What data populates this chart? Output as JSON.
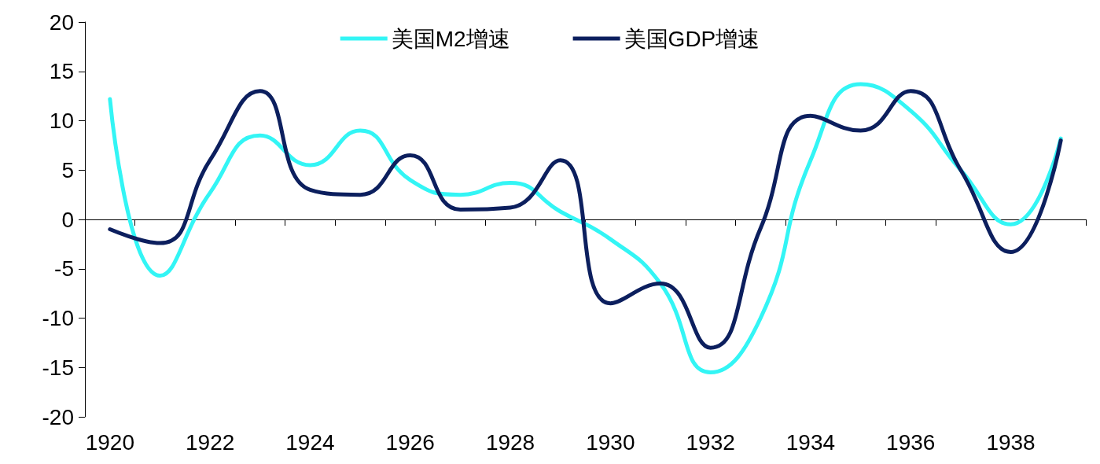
{
  "chart_data": {
    "type": "line",
    "categories": [
      "1920",
      null,
      "1922",
      null,
      "1924",
      null,
      "1926",
      null,
      "1928",
      null,
      "1930",
      null,
      "1932",
      null,
      "1934",
      null,
      "1936",
      null,
      "1938",
      null
    ],
    "series": [
      {
        "name": "美国M2增速",
        "color": "#33f5f5",
        "values": [
          12.2,
          -5.7,
          2.7,
          8.5,
          5.5,
          9,
          4,
          2.5,
          3.7,
          0.8,
          -2,
          -6.5,
          -15.5,
          -10,
          6,
          13.7,
          11,
          5,
          -0.5,
          8.2
        ]
      },
      {
        "name": "美国GDP增速",
        "color": "#0c1f5e",
        "values": [
          -1,
          -2.4,
          6,
          13,
          3,
          2.5,
          6.5,
          1,
          1.2,
          6,
          -8.5,
          -6.5,
          -13,
          -0.9,
          10.5,
          9,
          13,
          5,
          -3.3,
          8
        ]
      }
    ],
    "ylim": [
      -20,
      20
    ],
    "yticks": [
      -20,
      -15,
      -10,
      -5,
      0,
      5,
      10,
      15,
      20
    ],
    "legend": "top",
    "marker": "none",
    "line_style": "solid"
  }
}
